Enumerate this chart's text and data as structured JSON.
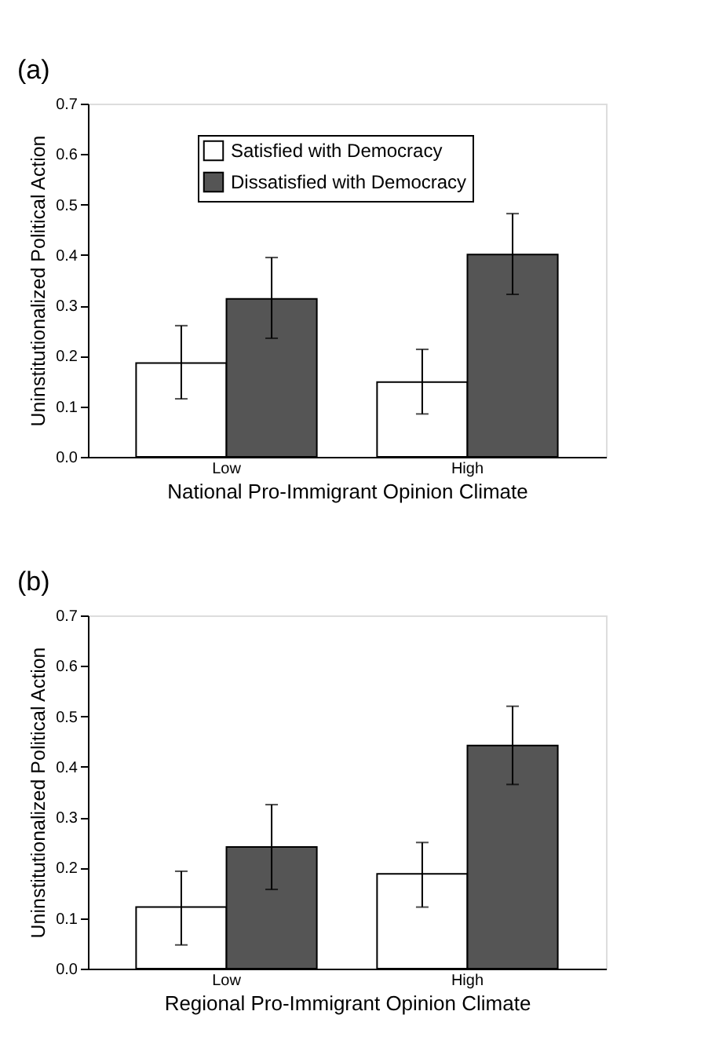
{
  "chart_data": [
    {
      "type": "bar",
      "annotations": [
        "(a)"
      ],
      "xlabel": "National Pro-Immigrant Opinion Climate",
      "ylabel": "Uninstitutionalized Political Action",
      "categories": [
        "Low",
        "High"
      ],
      "ylim": [
        0,
        0.7
      ],
      "yticks": [
        {
          "value": 0,
          "label": "0.0"
        },
        0.1,
        0.2,
        0.3,
        0.4,
        0.5,
        0.6,
        0.7
      ],
      "grid": false,
      "legend": "top",
      "series": [
        {
          "name": "Satisfied with Democracy",
          "color": "#ffffff",
          "values": [
            0.186,
            0.148
          ],
          "errors": [
            [
              0.115,
              0.26
            ],
            [
              0.085,
              0.213
            ]
          ]
        },
        {
          "name": "Dissatisfied with Democracy",
          "color": "#555555",
          "values": [
            0.313,
            0.401
          ],
          "errors": [
            [
              0.235,
              0.395
            ],
            [
              0.322,
              0.482
            ]
          ]
        }
      ]
    },
    {
      "type": "bar",
      "annotations": [
        "(b)"
      ],
      "xlabel": "Regional Pro-Immigrant Opinion Climate",
      "ylabel": "Uninstitutionalized Political Action",
      "categories": [
        "Low",
        "High"
      ],
      "ylim": [
        0,
        0.7
      ],
      "yticks": [
        {
          "value": 0,
          "label": "0.0"
        },
        0.1,
        0.2,
        0.3,
        0.4,
        0.5,
        0.6,
        0.7
      ],
      "grid": false,
      "legend": "top",
      "series": [
        {
          "name": "Satisfied with Democracy",
          "color": "#ffffff",
          "values": [
            0.122,
            0.188
          ],
          "errors": [
            [
              0.047,
              0.193
            ],
            [
              0.122,
              0.25
            ]
          ]
        },
        {
          "name": "Dissatisfied with Democracy",
          "color": "#555555",
          "values": [
            0.241,
            0.442
          ],
          "errors": [
            [
              0.157,
              0.325
            ],
            [
              0.365,
              0.52
            ]
          ]
        }
      ]
    }
  ]
}
